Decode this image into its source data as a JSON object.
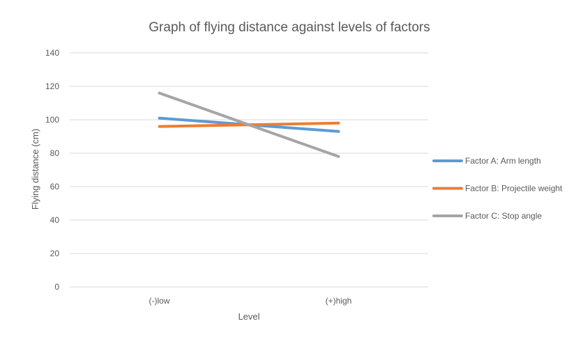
{
  "chart_data": {
    "type": "line",
    "title": "Graph of flying distance against levels of factors",
    "xlabel": "Level",
    "ylabel": "Flying distance (cm)",
    "categories": [
      "(-)low",
      "(+)high"
    ],
    "ylim": [
      0,
      140
    ],
    "yticks": [
      0,
      20,
      40,
      60,
      80,
      100,
      120,
      140
    ],
    "grid": true,
    "legend_position": "right",
    "series": [
      {
        "name": "Factor A: Arm length",
        "values": [
          101,
          93
        ],
        "color": "#5b9bd5"
      },
      {
        "name": "Factor B: Projectile weight",
        "values": [
          96,
          98
        ],
        "color": "#ed7d31"
      },
      {
        "name": "Factor C: Stop angle",
        "values": [
          116,
          78
        ],
        "color": "#a5a5a5"
      }
    ]
  }
}
